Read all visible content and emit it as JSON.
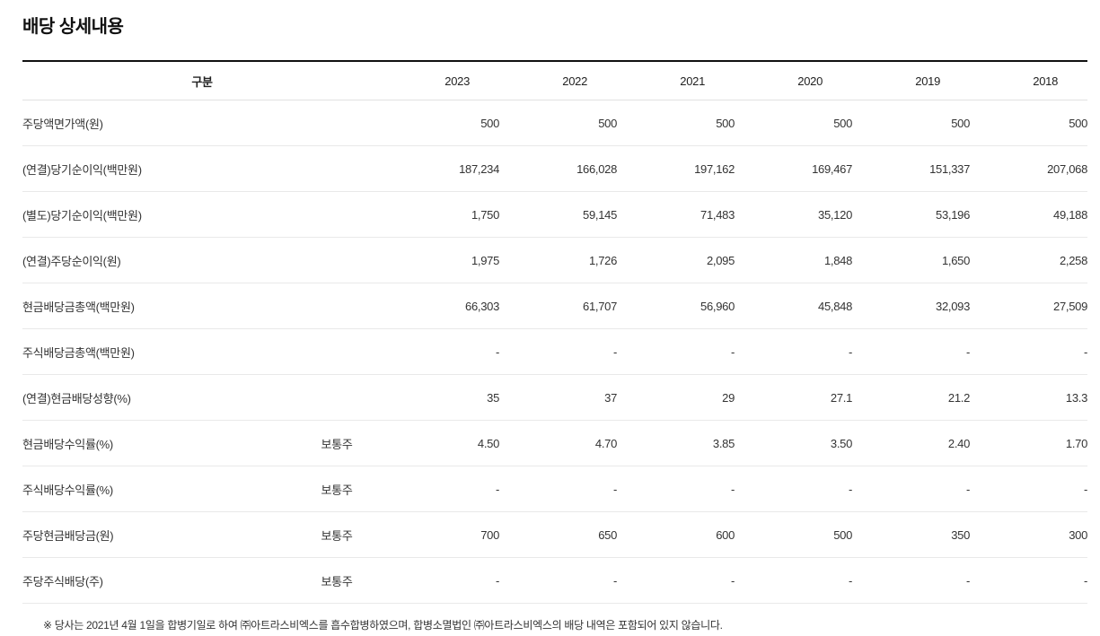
{
  "page": {
    "title": "배당 상세내용"
  },
  "table": {
    "header": {
      "category": "구분",
      "years": [
        "2023",
        "2022",
        "2021",
        "2020",
        "2019",
        "2018"
      ]
    },
    "rows": [
      {
        "label": "주당액면가액(원)",
        "sub": "",
        "values": [
          "500",
          "500",
          "500",
          "500",
          "500",
          "500"
        ]
      },
      {
        "label": "(연결)당기순이익(백만원)",
        "sub": "",
        "values": [
          "187,234",
          "166,028",
          "197,162",
          "169,467",
          "151,337",
          "207,068"
        ]
      },
      {
        "label": "(별도)당기순이익(백만원)",
        "sub": "",
        "values": [
          "1,750",
          "59,145",
          "71,483",
          "35,120",
          "53,196",
          "49,188"
        ]
      },
      {
        "label": "(연결)주당순이익(원)",
        "sub": "",
        "values": [
          "1,975",
          "1,726",
          "2,095",
          "1,848",
          "1,650",
          "2,258"
        ]
      },
      {
        "label": "현금배당금총액(백만원)",
        "sub": "",
        "values": [
          "66,303",
          "61,707",
          "56,960",
          "45,848",
          "32,093",
          "27,509"
        ]
      },
      {
        "label": "주식배당금총액(백만원)",
        "sub": "",
        "values": [
          "-",
          "-",
          "-",
          "-",
          "-",
          "-"
        ]
      },
      {
        "label": "(연결)현금배당성향(%)",
        "sub": "",
        "values": [
          "35",
          "37",
          "29",
          "27.1",
          "21.2",
          "13.3"
        ]
      },
      {
        "label": "현금배당수익률(%)",
        "sub": "보통주",
        "values": [
          "4.50",
          "4.70",
          "3.85",
          "3.50",
          "2.40",
          "1.70"
        ]
      },
      {
        "label": "주식배당수익률(%)",
        "sub": "보통주",
        "values": [
          "-",
          "-",
          "-",
          "-",
          "-",
          "-"
        ]
      },
      {
        "label": "주당현금배당금(원)",
        "sub": "보통주",
        "values": [
          "700",
          "650",
          "600",
          "500",
          "350",
          "300"
        ]
      },
      {
        "label": "주당주식배당(주)",
        "sub": "보통주",
        "values": [
          "-",
          "-",
          "-",
          "-",
          "-",
          "-"
        ]
      }
    ]
  },
  "footnote": "※ 당사는 2021년 4월 1일을 합병기일로 하여 ㈜아트라스비엑스를 흡수합병하였으며, 합병소멸법인 ㈜아트라스비엑스의 배당 내역은 포함되어 있지 않습니다."
}
